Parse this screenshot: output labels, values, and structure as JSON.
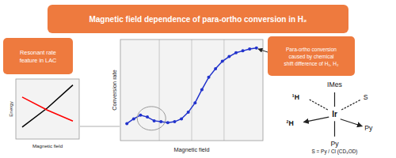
{
  "chart_data": [
    {
      "type": "line",
      "title": "Magnetic field dependence of para-ortho conversion in H₂",
      "x": [
        0.5,
        1.0,
        1.5,
        2.0,
        2.5,
        3.0,
        3.5,
        4.0,
        4.5,
        5.0,
        5.5,
        6.0,
        6.5,
        7.0,
        7.5,
        8.0,
        8.5,
        9.0,
        9.5,
        10.0
      ],
      "series": [
        {
          "color": "#2233cc",
          "marker": "circle",
          "values": [
            0.16,
            0.21,
            0.25,
            0.23,
            0.19,
            0.18,
            0.17,
            0.18,
            0.21,
            0.28,
            0.38,
            0.52,
            0.65,
            0.74,
            0.82,
            0.87,
            0.91,
            0.93,
            0.95,
            0.96
          ]
        }
      ],
      "xlabel": "Magnetic field",
      "ylabel": "Conversion rate",
      "xlim": [
        0.025,
        10.475
      ],
      "ylim": [
        -0.02,
        1.05
      ],
      "xticks": [
        2.875,
        5.25,
        7.625
      ],
      "grid": true,
      "tick_labels": false,
      "annotations": [
        "Resonant rate\nfeature in LAC",
        "Para-ortho conversion\ncaused by chemical\nshift difference of H₁, H₂",
        "Ir",
        "IMes",
        "S",
        "¹H",
        "²H",
        "Py",
        "Py",
        "S = Py / Cl (CD₃OD)"
      ]
    },
    {
      "type": "line",
      "x": [
        1,
        5,
        9
      ],
      "series": [
        {
          "color": "black",
          "values": [
            2,
            5.2,
            9
          ]
        },
        {
          "color": "red",
          "values": [
            7,
            4.8,
            3
          ]
        }
      ],
      "xlabel": "Magnetic field",
      "ylabel": "Energy",
      "xlim": [
        0,
        10
      ],
      "ylim": [
        0,
        10
      ],
      "tick_labels": false
    }
  ]
}
